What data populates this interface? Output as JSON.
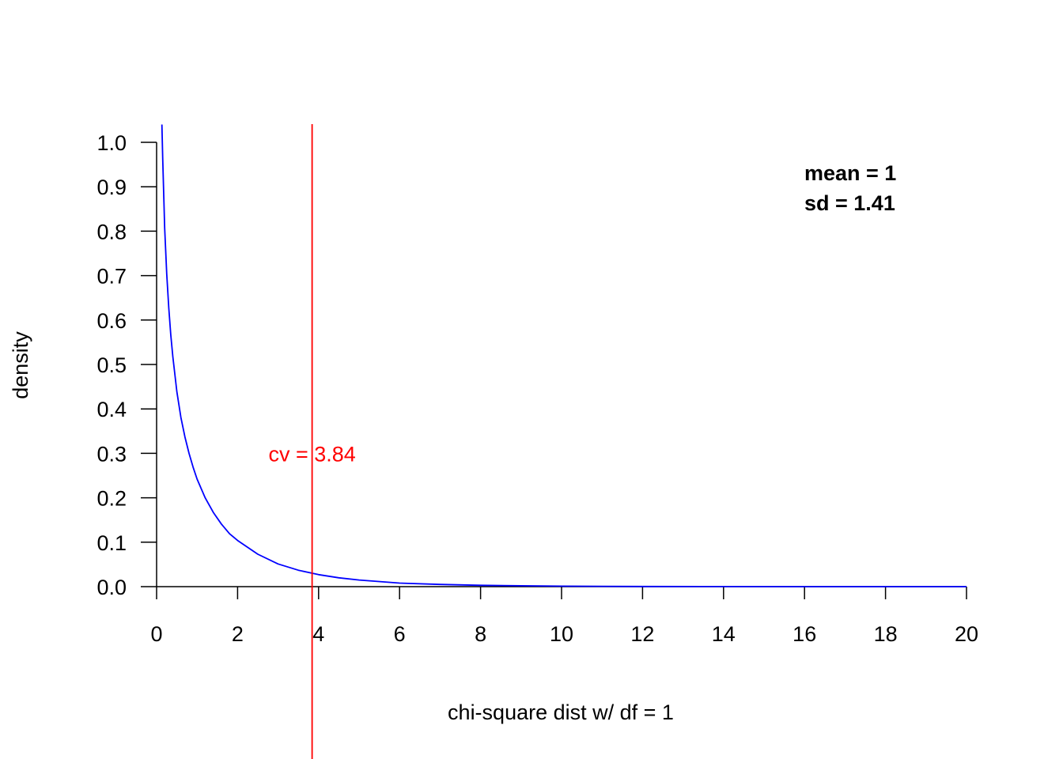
{
  "chart_data": {
    "type": "line",
    "xlabel": "chi-square dist w/ df = 1",
    "ylabel": "density",
    "xlim": [
      0,
      20
    ],
    "ylim": [
      0,
      1.0
    ],
    "x_ticks": [
      0,
      2,
      4,
      6,
      8,
      10,
      12,
      14,
      16,
      18,
      20
    ],
    "x_tick_labels": [
      "0",
      "2",
      "4",
      "6",
      "8",
      "10",
      "12",
      "14",
      "16",
      "18",
      "20"
    ],
    "y_ticks": [
      0.0,
      0.1,
      0.2,
      0.3,
      0.4,
      0.5,
      0.6,
      0.7,
      0.8,
      0.9,
      1.0
    ],
    "y_tick_labels": [
      "0.0",
      "0.1",
      "0.2",
      "0.3",
      "0.4",
      "0.5",
      "0.6",
      "0.7",
      "0.8",
      "0.9",
      "1.0"
    ],
    "grid": false,
    "series": [
      {
        "color": "#0000ff",
        "x": [
          0.13,
          0.15,
          0.2,
          0.25,
          0.3,
          0.35,
          0.4,
          0.5,
          0.6,
          0.7,
          0.8,
          0.9,
          1.0,
          1.2,
          1.4,
          1.6,
          1.8,
          2.0,
          2.5,
          3.0,
          3.5,
          4.0,
          4.5,
          5.0,
          6.0,
          7.0,
          8.0,
          9.0,
          10.0,
          12.0,
          14.0,
          16.0,
          18.0,
          20.0
        ],
        "y": [
          1.04,
          0.965,
          0.807,
          0.704,
          0.627,
          0.567,
          0.518,
          0.439,
          0.381,
          0.337,
          0.3,
          0.269,
          0.242,
          0.2,
          0.167,
          0.141,
          0.119,
          0.104,
          0.073,
          0.051,
          0.037,
          0.027,
          0.02,
          0.015,
          0.008,
          0.005,
          0.003,
          0.002,
          0.001,
          0.0003,
          0.0001,
          0.0,
          0.0,
          0.0
        ]
      }
    ],
    "critical_value": {
      "x": 3.84,
      "label": "cv = 3.84",
      "color": "#ff0000"
    },
    "annotations": {
      "mean_text": "mean = 1",
      "sd_text": "sd = 1.41"
    }
  }
}
